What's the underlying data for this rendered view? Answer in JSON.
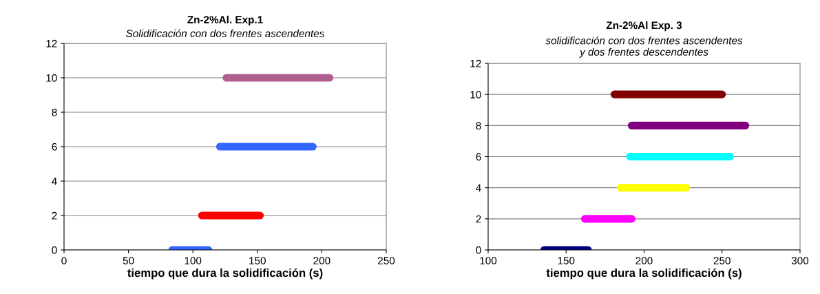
{
  "chart_data": [
    {
      "type": "line",
      "title": "Zn-2%Al. Exp.1",
      "subtitle": "Solidificación con dos frentes ascendentes",
      "xlabel": "tiempo que dura la solidificación (s)",
      "xlim": [
        0,
        250
      ],
      "xticks": [
        0,
        50,
        100,
        150,
        200,
        250
      ],
      "ylim": [
        0,
        12
      ],
      "yticks": [
        0,
        2,
        4,
        6,
        8,
        10,
        12
      ],
      "grid": "y",
      "line_style": "solid",
      "series": [
        {
          "color": "#3366ff",
          "x": [
            84,
            112
          ],
          "values": [
            0,
            0
          ]
        },
        {
          "color": "#ff0000",
          "x": [
            107,
            152
          ],
          "values": [
            2,
            2
          ]
        },
        {
          "color": "#3366ff",
          "x": [
            121,
            193
          ],
          "values": [
            6,
            6
          ]
        },
        {
          "color": "#b0608f",
          "x": [
            126,
            206
          ],
          "values": [
            10,
            10
          ]
        }
      ]
    },
    {
      "type": "line",
      "title": "Zn-2%Al Exp. 3",
      "subtitle": "solidificación con dos frentes ascendentes\ny dos frentes descendentes",
      "xlabel": "tiempo que dura la solidificación (s)",
      "xlim": [
        100,
        300
      ],
      "xticks": [
        100,
        150,
        200,
        250,
        300
      ],
      "ylim": [
        0,
        12
      ],
      "yticks": [
        0,
        2,
        4,
        6,
        8,
        10,
        12
      ],
      "grid": "y",
      "line_style": "solid",
      "series": [
        {
          "color": "#000080",
          "x": [
            136,
            164
          ],
          "values": [
            0,
            0
          ]
        },
        {
          "color": "#ff00ff",
          "x": [
            162,
            192
          ],
          "values": [
            2,
            2
          ]
        },
        {
          "color": "#ffff00",
          "x": [
            185,
            227
          ],
          "values": [
            4,
            4
          ]
        },
        {
          "color": "#00ffff",
          "x": [
            191,
            255
          ],
          "values": [
            6,
            6
          ]
        },
        {
          "color": "#800080",
          "x": [
            192,
            265
          ],
          "values": [
            8,
            8
          ]
        },
        {
          "color": "#800000",
          "x": [
            181,
            250
          ],
          "values": [
            10,
            10
          ]
        }
      ]
    }
  ]
}
